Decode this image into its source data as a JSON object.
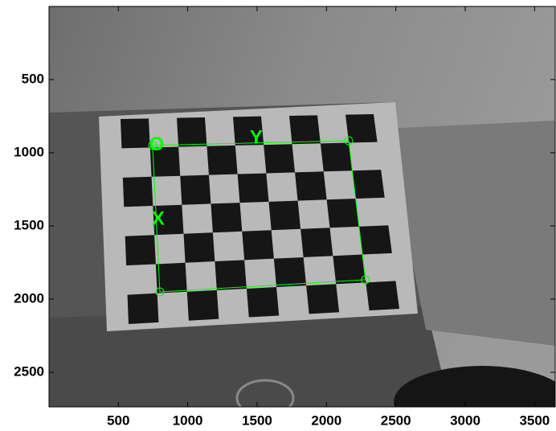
{
  "chart_data": {
    "type": "image",
    "xlim": [
      0.5,
      3648.5
    ],
    "ylim": [
      0.5,
      2736.5
    ],
    "xticks": [
      500,
      1000,
      1500,
      2000,
      2500,
      3000,
      3500
    ],
    "yticks": [
      500,
      1000,
      1500,
      2000,
      2500
    ],
    "color": "#00ff00",
    "corners": {
      "x": [
        747,
        2160,
        2281,
        799
      ],
      "y": [
        950,
        918,
        1868,
        1951
      ]
    },
    "labels": [
      {
        "text": "O",
        "x": 776,
        "y": 950
      },
      {
        "text": "X",
        "x": 787,
        "y": 1456
      },
      {
        "text": "Y",
        "x": 1494,
        "y": 901
      }
    ]
  }
}
